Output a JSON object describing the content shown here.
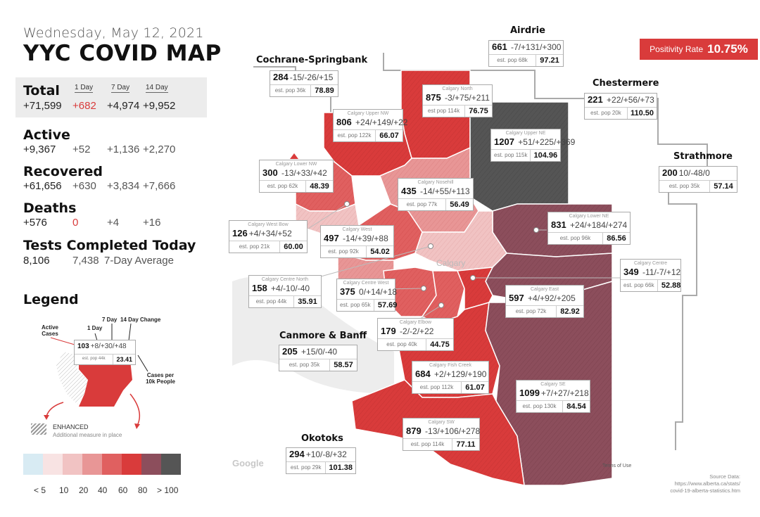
{
  "header": {
    "date": "Wednesday, May 12, 2021",
    "title": "YYC COVID MAP"
  },
  "stats": {
    "col_1day": "1 Day",
    "col_7day": "7 Day",
    "col_14day": "14 Day",
    "total": {
      "label": "Total",
      "value": "+71,599",
      "d1": "+682",
      "d7": "+4,974",
      "d14": "+9,952"
    },
    "active": {
      "label": "Active",
      "value": "+9,367",
      "d1": "+52",
      "d7": "+1,136",
      "d14": "+2,270"
    },
    "recovered": {
      "label": "Recovered",
      "value": "+61,656",
      "d1": "+630",
      "d7": "+3,834",
      "d14": "+7,666"
    },
    "deaths": {
      "label": "Deaths",
      "value": "+576",
      "d1": "0",
      "d7": "+4",
      "d14": "+16"
    },
    "tests": {
      "label": "Tests Completed Today",
      "value": "8,106",
      "avg": "7,438",
      "avg_label": "7-Day Average"
    }
  },
  "legend": {
    "title": "Legend",
    "active_cases": "Active Cases",
    "one_day": "1 Day",
    "seven_day": "7 Day",
    "fourteen_day": "14 Day Change",
    "per10k": "Cases per 10k People",
    "example": {
      "cases": "103",
      "changes": "+8/+30/+48",
      "pop": "est. pop 44k",
      "rate": "23.41"
    },
    "enhanced": "ENHANCED",
    "enhanced_sub": "Additional measure in place",
    "scale_colors": [
      "#d8ebf3",
      "#f8e3e3",
      "#f1c3c3",
      "#e89696",
      "#e06060",
      "#d93b3b",
      "#8c4e5c",
      "#555555"
    ],
    "scale_labels": [
      "< 5",
      "10",
      "20",
      "40",
      "60",
      "80",
      "> 100"
    ]
  },
  "positivity": {
    "label": "Positivity Rate",
    "value": "10.75%"
  },
  "areas": {
    "airdrie": {
      "name": "Airdrie",
      "cases": "661",
      "changes": "-7/+131/+300",
      "pop": "est. pop 68k",
      "rate": "97.21"
    },
    "cochrane": {
      "name": "Cochrane-Springbank",
      "cases": "284",
      "changes": "-15/-26/+15",
      "pop": "est. pop 36k",
      "rate": "78.89"
    },
    "chestermere": {
      "name": "Chestermere",
      "cases": "221",
      "changes": "+22/+56/+73",
      "pop": "est. pop 20k",
      "rate": "110.50"
    },
    "strathmore": {
      "name": "Strathmore",
      "cases": "200",
      "changes": "10/-48/0",
      "pop": "est. pop 35k",
      "rate": "57.14"
    },
    "canmore": {
      "name": "Canmore & Banff",
      "cases": "205",
      "changes": "+15/0/-40",
      "pop": "est. pop 35k",
      "rate": "58.57"
    },
    "okotoks": {
      "name": "Okotoks",
      "cases": "294",
      "changes": "+10/-8/+32",
      "pop": "est. pop 29k",
      "rate": "101.38"
    },
    "north": {
      "name": "Calgary North",
      "cases": "875",
      "changes": "-3/+75/+211",
      "pop": "est pop 114k",
      "rate": "76.75"
    },
    "upper_nw": {
      "name": "Calgary Upper NW",
      "cases": "806",
      "changes": "+24/+149/+22",
      "pop": "est. pop 122k",
      "rate": "66.07"
    },
    "upper_ne": {
      "name": "Calgary Upper NE",
      "cases": "1207",
      "changes": "+51/+225/+369",
      "pop": "est. pop 115k",
      "rate": "104.96"
    },
    "lower_nw": {
      "name": "Calgary Lower NW",
      "cases": "300",
      "changes": "-13/+33/+42",
      "pop": "est. pop 62k",
      "rate": "48.39"
    },
    "nosehill": {
      "name": "Calgary Nosehill",
      "cases": "435",
      "changes": "-14/+55/+113",
      "pop": "est. pop 77k",
      "rate": "56.49"
    },
    "lower_ne": {
      "name": "Calgary Lower NE",
      "cases": "831",
      "changes": "+24/+184/+274",
      "pop": "est. pop 96k",
      "rate": "86.56"
    },
    "west_bow": {
      "name": "Calgary West Bow",
      "cases": "126",
      "changes": "+4/+34/+52",
      "pop": "est. pop 21k",
      "rate": "60.00"
    },
    "west": {
      "name": "Calgary West",
      "cases": "497",
      "changes": "-14/+39/+88",
      "pop": "est. pop 92k",
      "rate": "54.02"
    },
    "centre": {
      "name": "Calgary Centre",
      "cases": "349",
      "changes": "-11/-7/+12",
      "pop": "est. pop 66k",
      "rate": "52.88"
    },
    "centre_north": {
      "name": "Calgary Centre North",
      "cases": "158",
      "changes": "+4/-10/-40",
      "pop": "est. pop 44k",
      "rate": "35.91"
    },
    "centre_west": {
      "name": "Calgary Centre West",
      "cases": "375",
      "changes": "0/+14/+18",
      "pop": "est. pop 65k",
      "rate": "57.69"
    },
    "east": {
      "name": "Calgary East",
      "cases": "597",
      "changes": "+4/+92/+205",
      "pop": "est. pop 72k",
      "rate": "82.92"
    },
    "elbow": {
      "name": "Calgary Elbow",
      "cases": "179",
      "changes": "-2/-2/+22",
      "pop": "est. pop 40k",
      "rate": "44.75"
    },
    "fish_creek": {
      "name": "Calgary Fish Creek",
      "cases": "684",
      "changes": "+2/+129/+190",
      "pop": "est. pop 112k",
      "rate": "61.07"
    },
    "se": {
      "name": "Calgary SE",
      "cases": "1099",
      "changes": "+7/+27/+218",
      "pop": "est. pop 130k",
      "rate": "84.54"
    },
    "sw": {
      "name": "Calgary SW",
      "cases": "879",
      "changes": "-13/+106/+278",
      "pop": "est. pop 114k",
      "rate": "77.11"
    }
  },
  "map_labels": {
    "calgary": "Calgary",
    "google": "Google",
    "terms": "Terms of Use"
  },
  "source": {
    "label": "Source Data:",
    "url1": "https://www.alberta.ca/stats/",
    "url2": "covid-19-alberta-statistics.htm"
  }
}
